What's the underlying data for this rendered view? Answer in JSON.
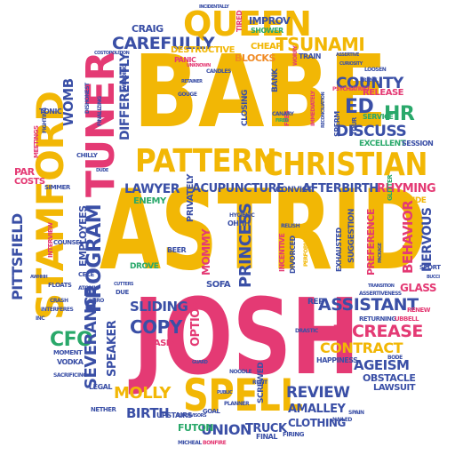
{
  "palette": {
    "yellow": "#f2b705",
    "pink": "#e43a74",
    "blue": "#3a4fa6",
    "green": "#29a86a",
    "orange": "#f08a24",
    "red": "#d9473b",
    "teal": "#2f9fb0",
    "purple": "#7d3fa1"
  },
  "words": {
    "babe": "BABE",
    "astrid": "ASTRID",
    "josh": "JOSH",
    "stamford": "STAMFORD",
    "tuner": "TUNER",
    "queen": "QUEEN",
    "pattern": "PATTERN",
    "christian": "CHRISTIAN",
    "spell": "SPELL",
    "tsunami": "TSUNAMI",
    "carefully": "CAREFULLY",
    "destructive": "DESTRUCTIVE",
    "cheap": "CHEAP",
    "blocks": "BLOCKS",
    "improv": "IMPROV",
    "shower": "SHOWER",
    "craig": "CRAIG",
    "train": "TRAIN",
    "womb": "WOMB",
    "differently": "DIFFERENTLY",
    "county": "COUNTY",
    "release": "RELEASE",
    "ed": "ED",
    "hr": "HR",
    "discuss": "DISCUSS",
    "service": "SERVICE",
    "excellent": "EXCELLENT",
    "session": "SESSION",
    "lawyer": "LAWYER",
    "acupuncture": "ACUPUNCTURE",
    "afterbirth": "AFTERBIRTH",
    "rhyming": "RHYMING",
    "beside": "BESIDE",
    "convict": "CONVICT",
    "privately": "PRIVATELY",
    "enemy": "ENEMY",
    "pittsfield": "PITTSFIELD",
    "employees": "EMPLOYEES",
    "program": "PROGRAM",
    "cfo": "CFO",
    "severance": "SEVERANCE",
    "speaker": "SPEAKER",
    "copy": "COPY",
    "sliding": "SLIDING",
    "mommy": "MOMMY",
    "princess": "PRINCESS",
    "sofa": "SOFA",
    "assistant": "ASSISTANT",
    "increase": "INCREASE",
    "contract": "CONTRACT",
    "ageism": "AGEISM",
    "obstacle": "OBSTACLE",
    "lawsuit": "LAWSUIT",
    "review": "REVIEW",
    "amalley": "AMALLEY",
    "clothing": "CLOTHING",
    "molly": "MOLLY",
    "birth": "BIRTH",
    "union": "UNION",
    "futon": "FUTON",
    "truck": "TRUCK",
    "glass": "GLASS",
    "behavior": "BEHAVIOR",
    "nervous": "NERVOUS",
    "preference": "PREFERENCE",
    "suggestion": "SUGGESTION",
    "exhausted": "EXHAUSTED",
    "option": "OPTION",
    "casino": "CASINO",
    "tonic": "TONIC",
    "par": "PAR",
    "costs": "COSTS",
    "counsel": "COUNSEL",
    "vodka": "VODKA",
    "moment": "MOMENT",
    "legal": "LEGAL",
    "upstairs": "UPSTAIRS",
    "drove": "DROVE",
    "screwed": "SCREWED",
    "happiness": "HAPPINESS",
    "renew": "RENEW",
    "sport": "SPORT",
    "nether": "NETHER",
    "beer": "BEER",
    "goal": "GOAL",
    "final": "FINAL",
    "firing": "FIRING",
    "rent": "RENT",
    "bank": "BANK",
    "panic": "PANIC",
    "closing": "CLOSING",
    "tired": "TIRED",
    "gouge": "GOUGE",
    "divorced": "DIVORCED",
    "incentive": "INCENTIVE",
    "relish": "RELISH",
    "chilly": "CHILLY",
    "simmer": "SIMMER",
    "interview": "INTERVIEW",
    "floats": "FLOATS",
    "rep": "REP",
    "cece": "CECE",
    "atomic": "ATOMIC",
    "glitter": "GLITTER",
    "sperm": "SPERM",
    "psychiatrist": "PSYCHIATRIST",
    "tour": "TOUR",
    "fees": "FEES",
    "hygienic": "HYGIENIC",
    "ohhh": "OHHH",
    "noodle": "NOODLE",
    "runt": "RUNT",
    "planner": "PLANNER",
    "crash": "CRASH",
    "sacrificing": "SACRIFICING",
    "interferes": "INTERFERES",
    "inc": "INC",
    "nailed": "NAILED",
    "spain": "SPAIN",
    "bode": "BODE",
    "hero": "HERO",
    "fighting": "FIGHTING",
    "meetings": "MEETINGS",
    "finalizing": "FINALIZING",
    "loosen": "LOOSEN",
    "curiosity": "CURIOSITY",
    "dishonest": "DISHONEST",
    "canary": "CANARY",
    "worry": "WORRY",
    "fired": "FIRED",
    "dude": "DUDE",
    "wedding": "WEDDING",
    "candles": "CANDLES",
    "retainer": "RETAINER",
    "unknown": "UNKNOWN",
    "costopolition": "COSTOPOLITION",
    "incidentally": "INCIDENTALLY",
    "immediately": "IMMEDIATELY",
    "reconciliation": "RECONCILIATION",
    "assertive": "ASSERTIVE",
    "assertiveness": "ASSERTIVENESS",
    "returning": "RETURNING",
    "ubbell": "UBBELL",
    "transition": "TRANSITION",
    "performance": "PERFORMANCE",
    "cutters": "CUTTERS",
    "due": "DUE",
    "awhhh": "AWHHH",
    "public": "PUBLIC",
    "drastic": "DRASTIC",
    "guard": "GUARD",
    "package": "PACKAGE",
    "bucci": "BUCCI",
    "supervisors": "SUPERVISORS",
    "micheal": "MICHEAL",
    "bonfire": "BONFIRE"
  }
}
